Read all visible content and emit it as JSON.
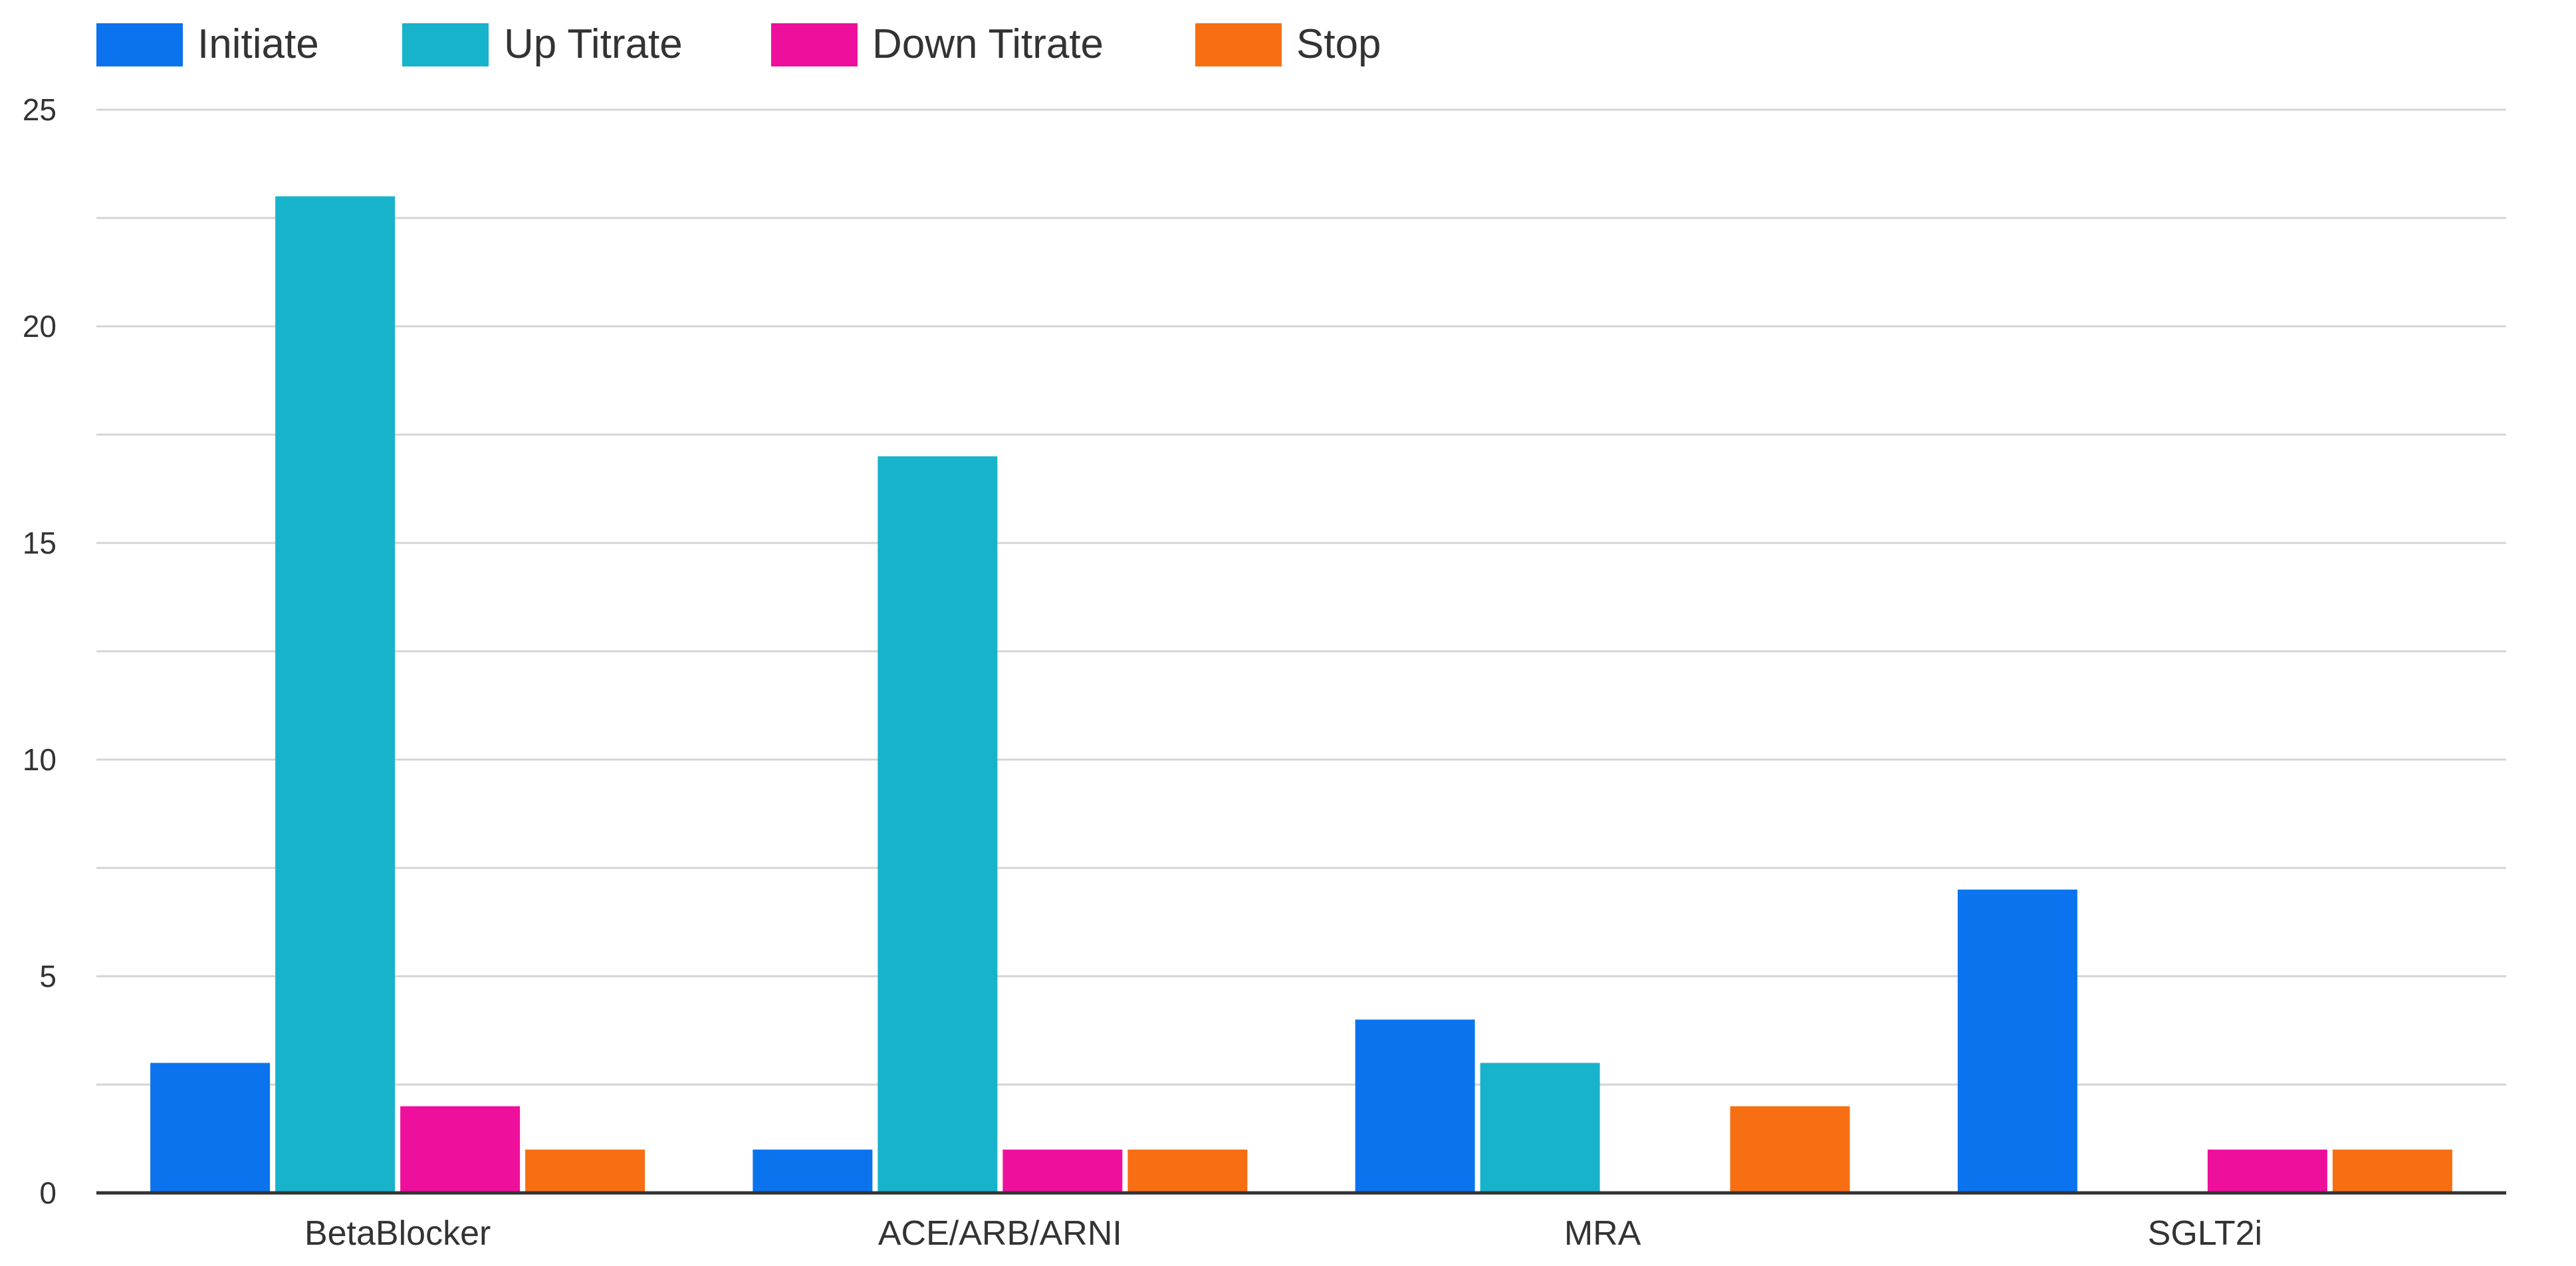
{
  "chart_data": {
    "type": "bar",
    "title": "",
    "xlabel": "",
    "ylabel": "",
    "categories": [
      "BetaBlocker",
      "ACE/ARB/ARNI",
      "MRA",
      "SGLT2i"
    ],
    "series": [
      {
        "name": "Initiate",
        "color": "#0b73ee",
        "values": [
          3,
          1,
          4,
          7
        ]
      },
      {
        "name": "Up Titrate",
        "color": "#17b3cb",
        "values": [
          23,
          17,
          3,
          0
        ]
      },
      {
        "name": "Down Titrate",
        "color": "#ee0f9d",
        "values": [
          2,
          1,
          0,
          1
        ]
      },
      {
        "name": "Stop",
        "color": "#f76f12",
        "values": [
          1,
          1,
          2,
          1
        ]
      }
    ],
    "ylim": [
      0,
      25
    ],
    "y_ticks": [
      0,
      5,
      10,
      15,
      20,
      25
    ],
    "grid": true,
    "legend": "top-left"
  },
  "colors": {
    "gridline": "#d4d4d4",
    "axis": "#333333"
  }
}
